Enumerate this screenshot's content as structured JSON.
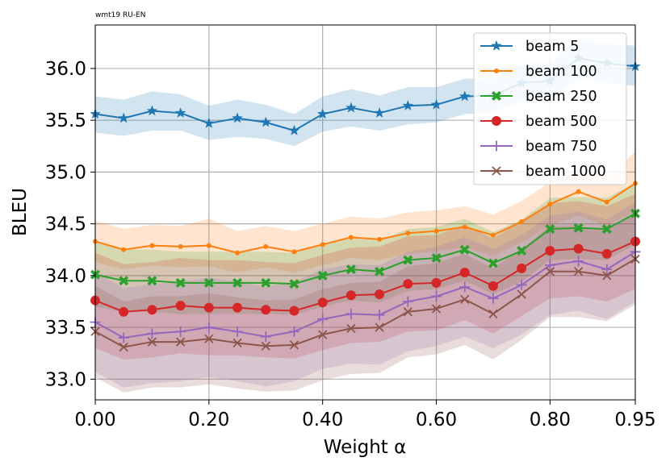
{
  "chart_data": {
    "type": "line",
    "title": "wmt19 RU-EN",
    "xlabel": "Weight α",
    "ylabel": "BLEU",
    "xlim": [
      0.0,
      0.95
    ],
    "ylim": [
      32.8,
      36.42
    ],
    "grid": true,
    "legend_position": "top-right",
    "x": [
      0.0,
      0.05,
      0.1,
      0.15,
      0.2,
      0.25,
      0.3,
      0.35,
      0.4,
      0.45,
      0.5,
      0.55,
      0.6,
      0.65,
      0.7,
      0.75,
      0.8,
      0.85,
      0.9,
      0.95
    ],
    "xticks": [
      {
        "value": 0.0,
        "label": "0.00"
      },
      {
        "value": 0.2,
        "label": "0.20"
      },
      {
        "value": 0.4,
        "label": "0.40"
      },
      {
        "value": 0.6,
        "label": "0.60"
      },
      {
        "value": 0.8,
        "label": "0.80"
      },
      {
        "value": 0.95,
        "label": "0.95"
      }
    ],
    "yticks": [
      {
        "value": 33.0,
        "label": "33.0"
      },
      {
        "value": 33.5,
        "label": "33.5"
      },
      {
        "value": 34.0,
        "label": "34.0"
      },
      {
        "value": 34.5,
        "label": "34.5"
      },
      {
        "value": 35.0,
        "label": "35.0"
      },
      {
        "value": 35.5,
        "label": "35.5"
      },
      {
        "value": 36.0,
        "label": "36.0"
      }
    ],
    "series": [
      {
        "name": "beam 5",
        "color": "#1f77b4",
        "marker": "star",
        "values": [
          35.56,
          35.52,
          35.59,
          35.57,
          35.47,
          35.52,
          35.48,
          35.4,
          35.56,
          35.62,
          35.57,
          35.64,
          35.65,
          35.73,
          35.74,
          35.86,
          35.88,
          36.1,
          36.05,
          36.02
        ],
        "band_low": [
          35.38,
          35.35,
          35.4,
          35.4,
          35.31,
          35.34,
          35.32,
          35.25,
          35.39,
          35.44,
          35.4,
          35.46,
          35.48,
          35.56,
          35.57,
          35.68,
          35.7,
          35.9,
          35.86,
          35.83
        ],
        "band_high": [
          35.73,
          35.7,
          35.78,
          35.75,
          35.64,
          35.7,
          35.65,
          35.56,
          35.73,
          35.8,
          35.74,
          35.82,
          35.82,
          35.9,
          35.91,
          36.04,
          36.06,
          36.28,
          36.24,
          36.22
        ]
      },
      {
        "name": "beam 100",
        "color": "#ff7f0e",
        "marker": "point",
        "values": [
          34.33,
          34.25,
          34.29,
          34.28,
          34.29,
          34.22,
          34.28,
          34.23,
          34.3,
          34.37,
          34.35,
          34.41,
          34.43,
          34.47,
          34.39,
          34.52,
          34.69,
          34.81,
          34.71,
          34.89
        ],
        "band_low": [
          34.13,
          34.06,
          34.1,
          34.08,
          34.09,
          34.03,
          34.08,
          34.03,
          34.1,
          34.17,
          34.15,
          34.21,
          34.23,
          34.27,
          34.19,
          34.32,
          34.48,
          34.58,
          34.48,
          34.62
        ],
        "band_high": [
          34.53,
          34.45,
          34.49,
          34.48,
          34.55,
          34.43,
          34.48,
          34.43,
          34.5,
          34.57,
          34.55,
          34.61,
          34.63,
          34.67,
          34.59,
          34.72,
          34.9,
          35.04,
          34.94,
          35.2
        ]
      },
      {
        "name": "beam 250",
        "color": "#2ca02c",
        "marker": "x-filled",
        "values": [
          34.01,
          33.95,
          33.95,
          33.93,
          33.93,
          33.93,
          33.93,
          33.92,
          34.0,
          34.06,
          34.04,
          34.15,
          34.17,
          34.25,
          34.12,
          34.24,
          34.45,
          34.46,
          34.45,
          34.6
        ],
        "band_low": [
          33.7,
          33.65,
          33.65,
          33.63,
          33.63,
          33.63,
          33.63,
          33.62,
          33.7,
          33.76,
          33.74,
          33.85,
          33.87,
          33.95,
          33.82,
          33.94,
          34.15,
          34.16,
          34.15,
          34.3
        ],
        "band_high": [
          34.32,
          34.25,
          34.25,
          34.23,
          34.23,
          34.23,
          34.23,
          34.22,
          34.3,
          34.36,
          34.34,
          34.45,
          34.47,
          34.55,
          34.42,
          34.54,
          34.75,
          34.76,
          34.75,
          34.9
        ]
      },
      {
        "name": "beam 500",
        "color": "#d62728",
        "marker": "circle",
        "values": [
          33.76,
          33.65,
          33.67,
          33.71,
          33.69,
          33.69,
          33.67,
          33.66,
          33.74,
          33.81,
          33.82,
          33.92,
          33.93,
          34.03,
          33.9,
          34.07,
          34.24,
          34.26,
          34.21,
          34.33
        ],
        "band_low": [
          33.3,
          33.19,
          33.21,
          33.25,
          33.23,
          33.23,
          33.21,
          33.2,
          33.28,
          33.35,
          33.36,
          33.46,
          33.47,
          33.57,
          33.44,
          33.61,
          33.78,
          33.8,
          33.75,
          33.87
        ],
        "band_high": [
          34.22,
          34.11,
          34.13,
          34.17,
          34.15,
          34.15,
          34.13,
          34.12,
          34.2,
          34.27,
          34.28,
          34.38,
          34.39,
          34.49,
          34.36,
          34.53,
          34.7,
          34.72,
          34.67,
          34.79
        ]
      },
      {
        "name": "beam 750",
        "color": "#9467bd",
        "marker": "plus",
        "values": [
          33.55,
          33.4,
          33.44,
          33.46,
          33.5,
          33.46,
          33.41,
          33.46,
          33.58,
          33.63,
          33.62,
          33.75,
          33.8,
          33.89,
          33.78,
          33.91,
          34.1,
          34.14,
          34.06,
          34.23
        ],
        "band_low": [
          33.07,
          32.92,
          32.96,
          32.98,
          33.02,
          32.98,
          32.93,
          32.98,
          33.1,
          33.15,
          33.14,
          33.27,
          33.32,
          33.41,
          33.3,
          33.43,
          33.62,
          33.66,
          33.58,
          33.75
        ],
        "band_high": [
          34.03,
          33.88,
          33.92,
          33.94,
          33.98,
          33.94,
          33.89,
          33.94,
          34.06,
          34.11,
          34.1,
          34.23,
          34.28,
          34.37,
          34.26,
          34.39,
          34.58,
          34.62,
          34.54,
          34.71
        ]
      },
      {
        "name": "beam 1000",
        "color": "#8c564b",
        "marker": "x",
        "values": [
          33.46,
          33.31,
          33.36,
          33.36,
          33.39,
          33.35,
          33.32,
          33.33,
          33.43,
          33.49,
          33.5,
          33.65,
          33.68,
          33.77,
          33.63,
          33.82,
          34.04,
          34.04,
          34.0,
          34.16
        ],
        "band_low": [
          33.02,
          32.87,
          32.92,
          32.92,
          32.95,
          32.91,
          32.88,
          32.89,
          32.99,
          33.05,
          33.06,
          33.21,
          33.24,
          33.33,
          33.19,
          33.38,
          33.6,
          33.6,
          33.56,
          33.72
        ],
        "band_high": [
          33.9,
          33.75,
          33.8,
          33.8,
          33.83,
          33.79,
          33.76,
          33.77,
          33.87,
          33.93,
          33.94,
          34.09,
          34.12,
          34.21,
          34.07,
          34.26,
          34.48,
          34.48,
          34.44,
          34.6
        ]
      }
    ]
  }
}
